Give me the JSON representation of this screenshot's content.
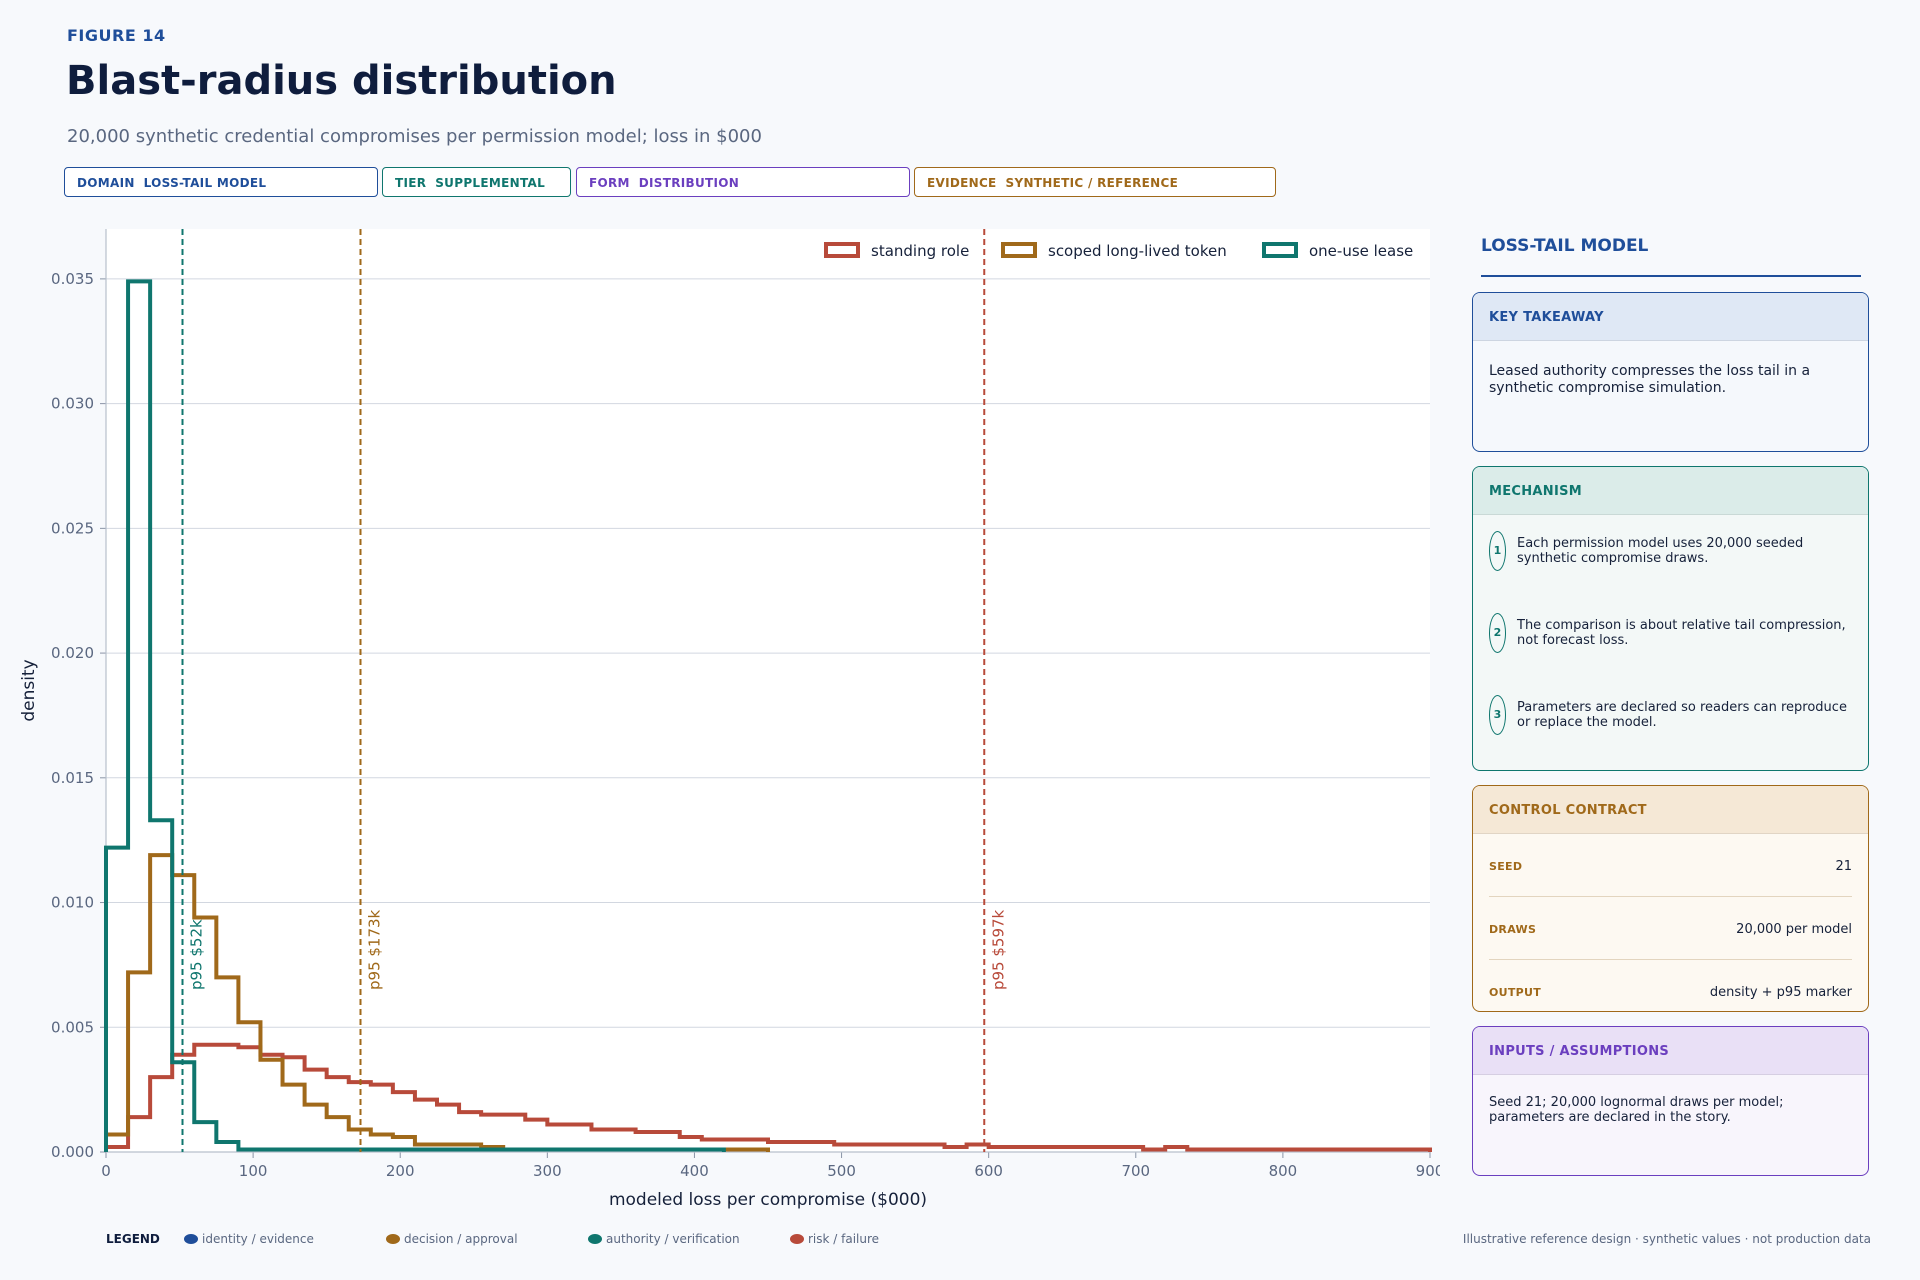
{
  "header": {
    "figure_label": "FIGURE 14",
    "title": "Blast-radius distribution",
    "subtitle": "20,000 synthetic credential compromises per permission model; loss in $000"
  },
  "pills": [
    {
      "text": "DOMAIN  LOSS-TAIL MODEL",
      "color": "#1f4e9a"
    },
    {
      "text": "TIER  SUPPLEMENTAL",
      "color": "#0f766e"
    },
    {
      "text": "FORM  DISTRIBUTION",
      "color": "#6b3fbf"
    },
    {
      "text": "EVIDENCE  SYNTHETIC / REFERENCE",
      "color": "#a0691a"
    }
  ],
  "chart_data": {
    "type": "histogram",
    "xlabel": "modeled loss per compromise ($000)",
    "ylabel": "density",
    "xlim": [
      0,
      900
    ],
    "ylim": [
      0,
      0.037
    ],
    "x_ticks": [
      0,
      100,
      200,
      300,
      400,
      500,
      600,
      700,
      800,
      900
    ],
    "y_ticks": [
      0.0,
      0.005,
      0.01,
      0.015,
      0.02,
      0.025,
      0.03,
      0.035
    ],
    "y_tick_labels": [
      "0.000",
      "0.005",
      "0.010",
      "0.015",
      "0.020",
      "0.025",
      "0.030",
      "0.035"
    ],
    "grid": "horizontal",
    "legend_position": "top-right",
    "bin_width": 15,
    "series": [
      {
        "name": "standing role",
        "color": "#b84a3a",
        "p95": 597,
        "p95_label": "p95 $597k",
        "values": [
          0.0002,
          0.0014,
          0.003,
          0.0039,
          0.0043,
          0.0043,
          0.0042,
          0.0039,
          0.0038,
          0.0033,
          0.003,
          0.0028,
          0.0027,
          0.0024,
          0.0021,
          0.0019,
          0.0016,
          0.0015,
          0.0015,
          0.0013,
          0.0011,
          0.0011,
          0.0009,
          0.0009,
          0.0008,
          0.0008,
          0.0006,
          0.0005,
          0.0005,
          0.0005,
          0.0004,
          0.0004,
          0.0004,
          0.0003,
          0.0003,
          0.0003,
          0.0003,
          0.0003,
          0.0002,
          0.0003,
          0.0002,
          0.0002,
          0.0002,
          0.0002,
          0.0002,
          0.0002,
          0.0002,
          0.0001,
          0.0002,
          0.0001,
          0.0001,
          0.0001,
          0.0001,
          0.0001,
          0.0001,
          0.0001,
          0.0001,
          0.0001,
          0.0001,
          0.0001
        ]
      },
      {
        "name": "scoped long-lived token",
        "color": "#a0691a",
        "p95": 173,
        "p95_label": "p95 $173k",
        "values": [
          0.0007,
          0.0072,
          0.0119,
          0.0111,
          0.0094,
          0.007,
          0.0052,
          0.0037,
          0.0027,
          0.0019,
          0.0014,
          0.0009,
          0.0007,
          0.0006,
          0.0003,
          0.0003,
          0.0003,
          0.0002,
          0.0001,
          0.0001,
          0.0001,
          0.0001,
          0.0001,
          0.0001,
          0.0001,
          0.0001,
          0.0001,
          0.0001,
          0.0001,
          0.0001
        ]
      },
      {
        "name": "one-use lease",
        "color": "#0f766e",
        "p95": 52,
        "p95_label": "p95 $52k",
        "values": [
          0.0122,
          0.0349,
          0.0133,
          0.0036,
          0.0012,
          0.0004,
          0.0001,
          0.0001,
          0.0001,
          0.0001,
          0.0001,
          0.0001,
          0.0001,
          0.0001,
          0.0001,
          0.0001,
          0.0001,
          0.0001,
          0.0001,
          0.0001,
          0.0001,
          0.0001,
          0.0001,
          0.0001,
          0.0001,
          0.0001,
          0.0001,
          0.0001
        ]
      }
    ]
  },
  "panel": {
    "title": "LOSS-TAIL MODEL",
    "takeaway": {
      "heading": "KEY TAKEAWAY",
      "text": "Leased authority compresses the loss tail in a synthetic compromise simulation."
    },
    "mechanism": {
      "heading": "MECHANISM",
      "items": [
        {
          "num": "1",
          "text": "Each permission model uses 20,000 seeded synthetic compromise draws."
        },
        {
          "num": "2",
          "text": "The comparison is about relative tail compression, not forecast loss."
        },
        {
          "num": "3",
          "text": "Parameters are declared so readers can reproduce or replace the model."
        }
      ]
    },
    "contract": {
      "heading": "CONTROL CONTRACT",
      "rows": [
        {
          "key": "SEED",
          "value": "21"
        },
        {
          "key": "DRAWS",
          "value": "20,000 per model"
        },
        {
          "key": "OUTPUT",
          "value": "density + p95 marker"
        }
      ]
    },
    "inputs": {
      "heading": "INPUTS / ASSUMPTIONS",
      "text": "Seed 21; 20,000 lognormal draws per model; parameters are declared in the story."
    }
  },
  "bottom_legend": {
    "title": "LEGEND",
    "items": [
      {
        "label": "identity / evidence",
        "color": "#1f4e9a"
      },
      {
        "label": "decision / approval",
        "color": "#a0691a"
      },
      {
        "label": "authority / verification",
        "color": "#0f766e"
      },
      {
        "label": "risk / failure",
        "color": "#b84a3a"
      }
    ]
  },
  "footnote": "Illustrative reference design · synthetic values · not production data"
}
